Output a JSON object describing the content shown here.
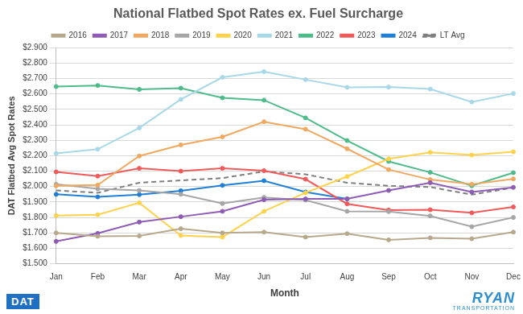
{
  "chart_data": {
    "type": "line",
    "title": "National Flatbed Spot Rates ex. Fuel Surcharge",
    "x_label": "Month",
    "y_label": "DAT Flatbed Avg Spot Rates",
    "categories": [
      "Jan",
      "Feb",
      "Mar",
      "Apr",
      "May",
      "Jun",
      "Jul",
      "Aug",
      "Sep",
      "Oct",
      "Nov",
      "Dec"
    ],
    "series": [
      {
        "name": "2016",
        "color": "#b8a98c",
        "marker": "circle",
        "line_style": "solid",
        "values": [
          1.7,
          1.678,
          1.68,
          1.727,
          1.7,
          1.705,
          1.673,
          1.695,
          1.655,
          1.668,
          1.662,
          1.705
        ]
      },
      {
        "name": "2017",
        "color": "#8e5bb5",
        "marker": "circle",
        "line_style": "solid",
        "values": [
          1.645,
          1.697,
          1.77,
          1.805,
          1.84,
          1.915,
          1.92,
          1.92,
          1.975,
          2.025,
          1.965,
          1.995
        ]
      },
      {
        "name": "2018",
        "color": "#f0a860",
        "marker": "circle",
        "line_style": "solid",
        "values": [
          2.005,
          2.01,
          2.198,
          2.27,
          2.322,
          2.42,
          2.372,
          2.245,
          2.11,
          2.045,
          2.015,
          2.05
        ]
      },
      {
        "name": "2019",
        "color": "#a6a6a6",
        "marker": "circle",
        "line_style": "solid",
        "values": [
          2.015,
          1.985,
          1.975,
          1.95,
          1.89,
          1.93,
          1.912,
          1.84,
          1.838,
          1.81,
          1.74,
          1.8
        ]
      },
      {
        "name": "2020",
        "color": "#ffd24d",
        "marker": "circle",
        "line_style": "solid",
        "values": [
          1.812,
          1.818,
          1.895,
          1.683,
          1.673,
          1.84,
          1.96,
          2.065,
          2.18,
          2.222,
          2.205,
          2.225
        ]
      },
      {
        "name": "2021",
        "color": "#a8d8e8",
        "marker": "circle",
        "line_style": "solid",
        "values": [
          2.215,
          2.242,
          2.38,
          2.565,
          2.708,
          2.745,
          2.693,
          2.643,
          2.645,
          2.632,
          2.548,
          2.603
        ]
      },
      {
        "name": "2022",
        "color": "#4dbb8a",
        "marker": "circle",
        "line_style": "solid",
        "values": [
          2.648,
          2.655,
          2.63,
          2.638,
          2.575,
          2.56,
          2.445,
          2.298,
          2.163,
          2.092,
          2.005,
          2.09
        ]
      },
      {
        "name": "2023",
        "color": "#f05a5a",
        "marker": "circle",
        "line_style": "solid",
        "values": [
          2.095,
          2.068,
          2.118,
          2.1,
          2.118,
          2.103,
          2.048,
          1.888,
          1.848,
          1.85,
          1.83,
          1.868
        ]
      },
      {
        "name": "2024",
        "color": "#1f7fd6",
        "marker": "circle",
        "line_style": "solid",
        "values": [
          1.95,
          1.933,
          1.948,
          1.973,
          2.008,
          2.038,
          1.965,
          1.92,
          null,
          null,
          null,
          null
        ]
      },
      {
        "name": "LT Avg",
        "color": "#7f7f7f",
        "marker": "none",
        "line_style": "dashed",
        "values": [
          1.975,
          1.96,
          2.025,
          2.04,
          2.055,
          2.098,
          2.08,
          2.025,
          2.005,
          1.997,
          1.948,
          1.993
        ]
      }
    ],
    "ylim": [
      1.5,
      2.9
    ],
    "yticks": [
      {
        "value": 1.5,
        "label": "$1.500"
      },
      {
        "value": 1.6,
        "label": "$1.600"
      },
      {
        "value": 1.7,
        "label": "$1.700"
      },
      {
        "value": 1.8,
        "label": "$1.800"
      },
      {
        "value": 1.9,
        "label": "$1.900"
      },
      {
        "value": 2.0,
        "label": "$2.000"
      },
      {
        "value": 2.1,
        "label": "$2.100"
      },
      {
        "value": 2.2,
        "label": "$2.200"
      },
      {
        "value": 2.3,
        "label": "$2.300"
      },
      {
        "value": 2.4,
        "label": "$2.400"
      },
      {
        "value": 2.5,
        "label": "$2.500"
      },
      {
        "value": 2.6,
        "label": "$2.600"
      },
      {
        "value": 2.7,
        "label": "$2.700"
      },
      {
        "value": 2.8,
        "label": "$2.800"
      },
      {
        "value": 2.9,
        "label": "$2.900"
      }
    ],
    "grid": true,
    "legend": "top",
    "annotations": [
      "DAT",
      "RYAN",
      "TRANSPORTATION"
    ]
  }
}
